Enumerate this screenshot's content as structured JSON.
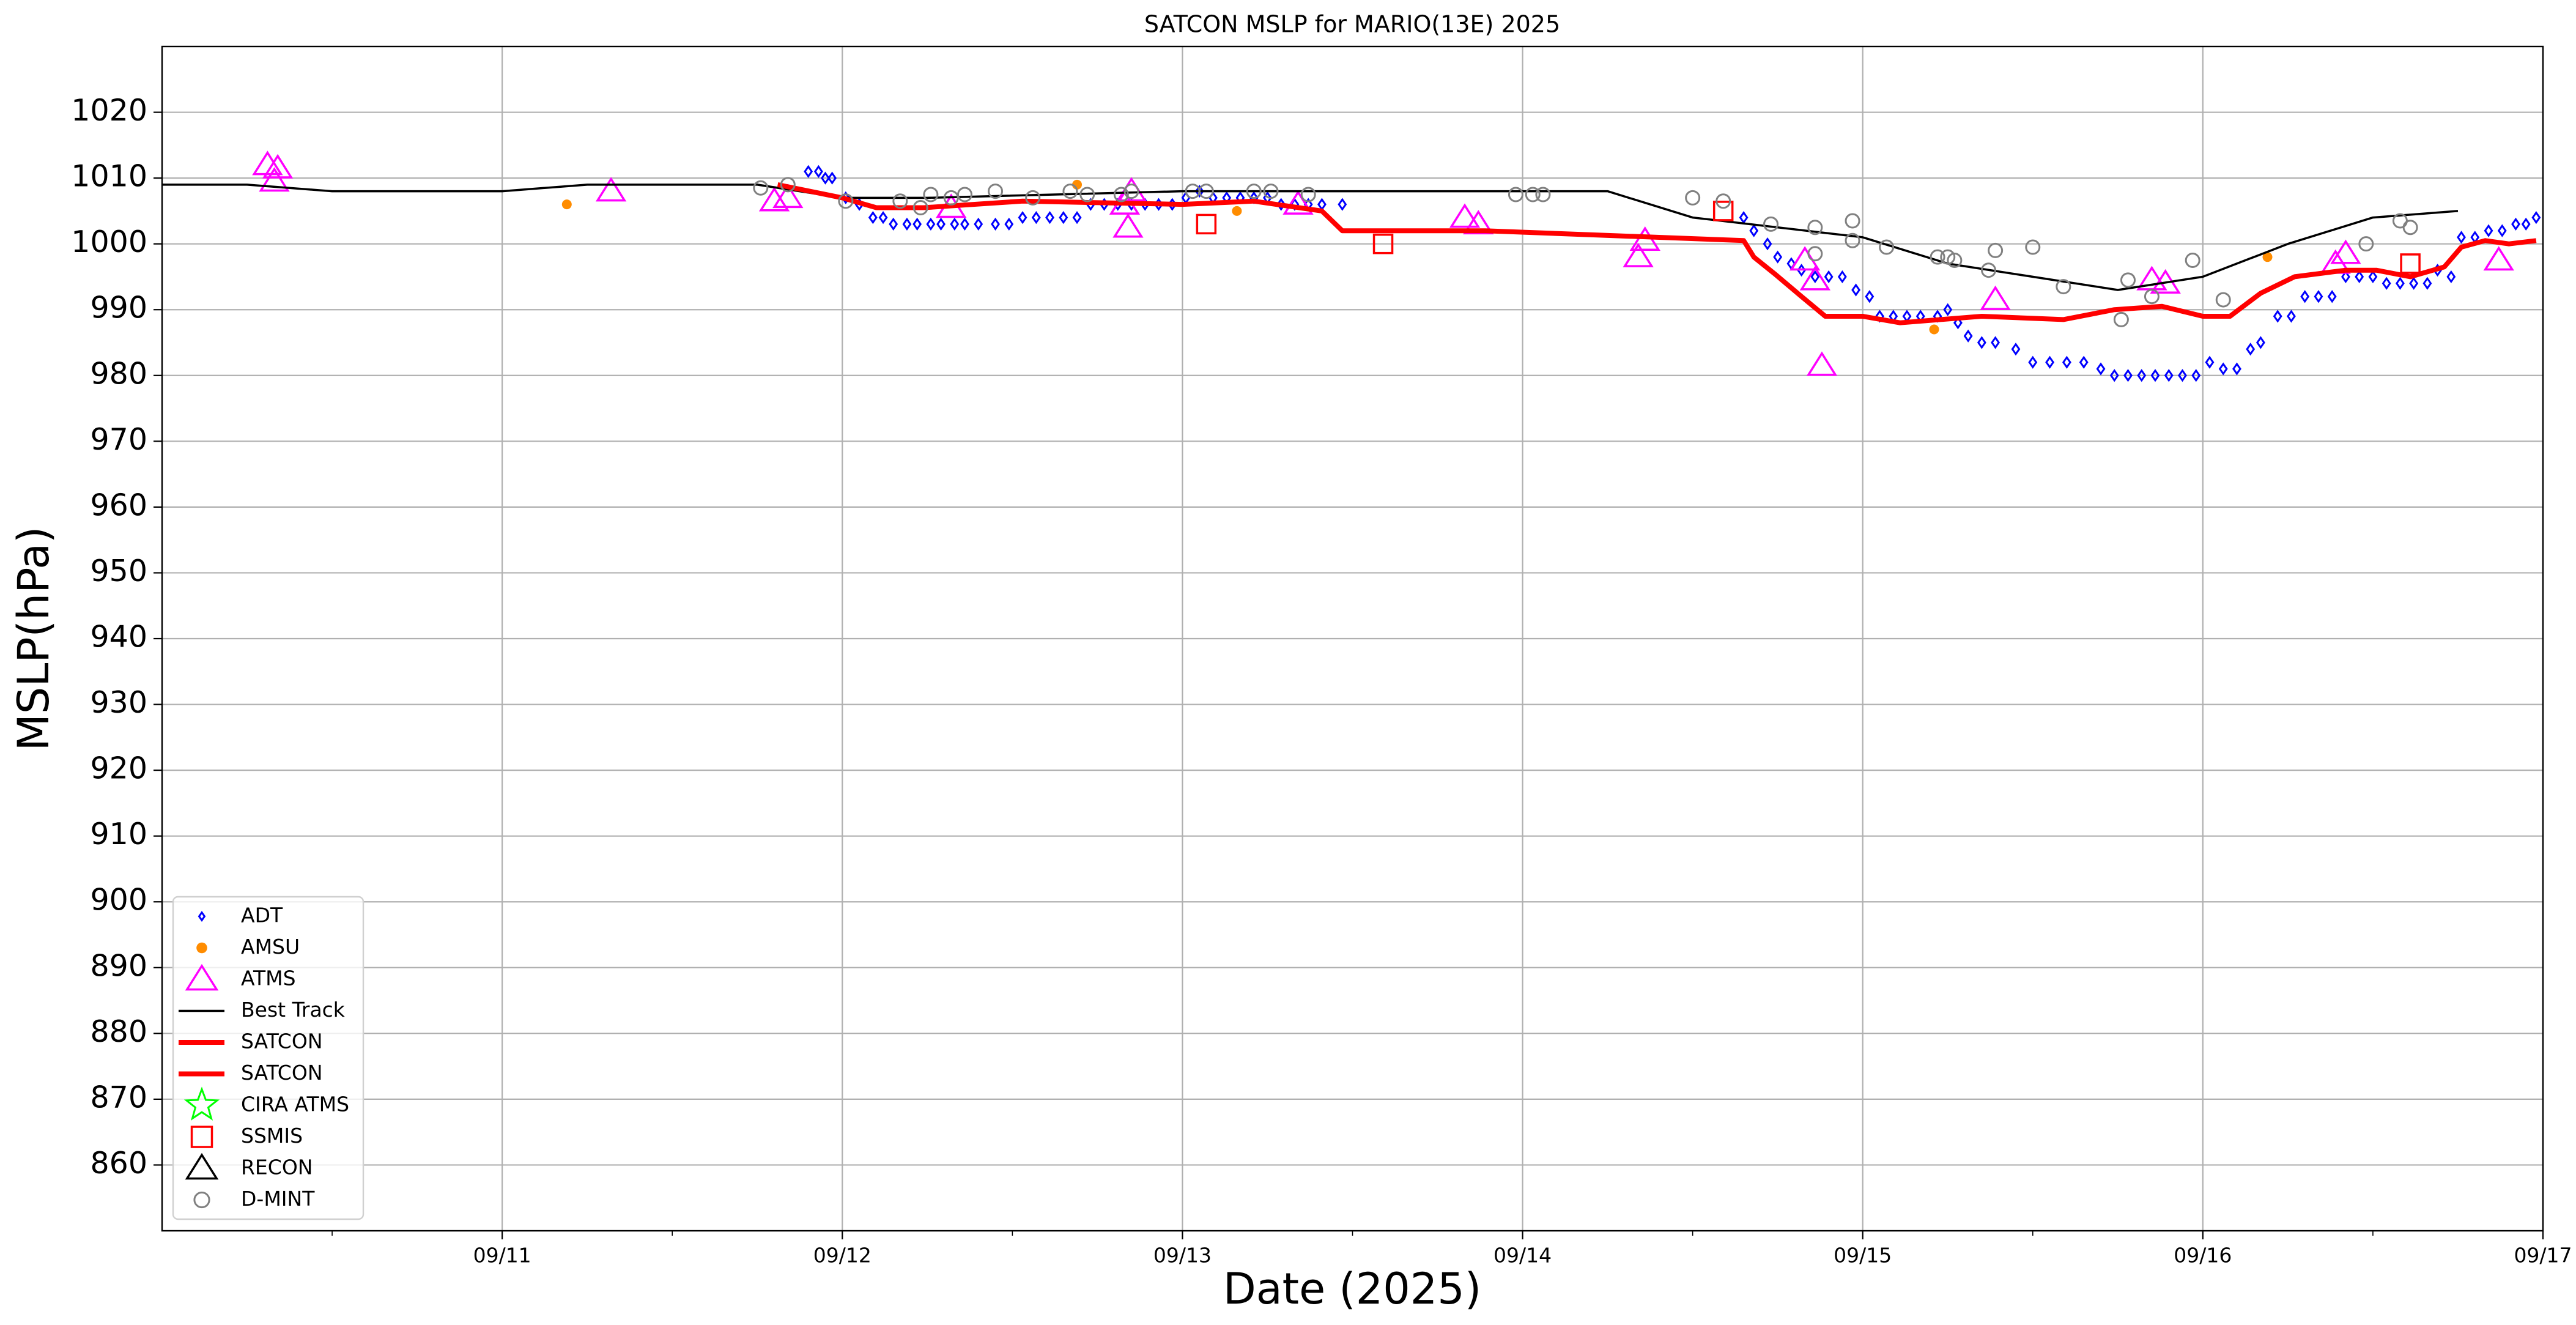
{
  "chart_data": {
    "type": "line",
    "title": "SATCON MSLP for MARIO(13E) 2025",
    "xlabel": "Date (2025)",
    "ylabel": "MSLP(hPa)",
    "xlim": [
      0,
      7
    ],
    "xticks": [
      {
        "value": 1,
        "label": "09/11"
      },
      {
        "value": 2,
        "label": "09/12"
      },
      {
        "value": 3,
        "label": "09/13"
      },
      {
        "value": 4,
        "label": "09/14"
      },
      {
        "value": 5,
        "label": "09/15"
      },
      {
        "value": 6,
        "label": "09/16"
      },
      {
        "value": 7,
        "label": "09/17"
      }
    ],
    "xminorticks": [
      0.5,
      1.5,
      2.5,
      3.5,
      4.5,
      5.5,
      6.5
    ],
    "ylim": [
      850,
      1030
    ],
    "yticks": [
      860,
      870,
      880,
      890,
      900,
      910,
      920,
      930,
      940,
      950,
      960,
      970,
      980,
      990,
      1000,
      1010,
      1020
    ],
    "grid": true,
    "legend": "lower left",
    "series": [
      {
        "name": "ADT",
        "color": "#0000ff",
        "style": "diamond",
        "x": [
          1.9,
          1.93,
          1.95,
          1.97,
          2.01,
          2.05,
          2.09,
          2.12,
          2.15,
          2.19,
          2.22,
          2.26,
          2.29,
          2.33,
          2.36,
          2.4,
          2.45,
          2.49,
          2.53,
          2.57,
          2.61,
          2.65,
          2.69,
          2.73,
          2.77,
          2.81,
          2.85,
          2.89,
          2.93,
          2.97,
          3.01,
          3.05,
          3.09,
          3.13,
          3.17,
          3.21,
          3.25,
          3.29,
          3.33,
          3.37,
          3.41,
          3.47,
          4.65,
          4.68,
          4.72,
          4.75,
          4.79,
          4.82,
          4.86,
          4.9,
          4.94,
          4.98,
          5.02,
          5.05,
          5.09,
          5.13,
          5.17,
          5.22,
          5.25,
          5.28,
          5.31,
          5.35,
          5.39,
          5.45,
          5.5,
          5.55,
          5.6,
          5.65,
          5.7,
          5.74,
          5.78,
          5.82,
          5.86,
          5.9,
          5.94,
          5.98,
          6.02,
          6.06,
          6.1,
          6.14,
          6.17,
          6.22,
          6.26,
          6.3,
          6.34,
          6.38,
          6.42,
          6.46,
          6.5,
          6.54,
          6.58,
          6.62,
          6.66,
          6.69,
          6.73,
          6.76,
          6.8,
          6.84,
          6.88,
          6.92,
          6.95,
          6.98
        ],
        "values": [
          1011,
          1011,
          1010,
          1010,
          1007,
          1006,
          1004,
          1004,
          1003,
          1003,
          1003,
          1003,
          1003,
          1003,
          1003,
          1003,
          1003,
          1003,
          1004,
          1004,
          1004,
          1004,
          1004,
          1006,
          1006,
          1006,
          1006,
          1006,
          1006,
          1006,
          1007,
          1008,
          1007,
          1007,
          1007,
          1007,
          1007,
          1006,
          1006,
          1006,
          1006,
          1006,
          1004,
          1002,
          1000,
          998,
          997,
          996,
          995,
          995,
          995,
          993,
          992,
          989,
          989,
          989,
          989,
          989,
          990,
          988,
          986,
          985,
          985,
          984,
          982,
          982,
          982,
          982,
          981,
          980,
          980,
          980,
          980,
          980,
          980,
          980,
          982,
          981,
          981,
          984,
          985,
          989,
          989,
          992,
          992,
          992,
          995,
          995,
          995,
          994,
          994,
          994,
          994,
          996,
          995,
          1001,
          1001,
          1002,
          1002,
          1003,
          1003,
          1004
        ]
      },
      {
        "name": "AMSU",
        "color": "#ff8c00",
        "style": "dot",
        "x": [
          1.19,
          2.69,
          3.16,
          5.21,
          6.19
        ],
        "values": [
          1006,
          1009,
          1005,
          987,
          998
        ]
      },
      {
        "name": "ATMS",
        "color": "#ff00ff",
        "style": "triangle",
        "x": [
          0.31,
          0.34,
          0.33,
          1.32,
          1.8,
          1.84,
          2.32,
          2.83,
          2.84,
          2.85,
          3.34,
          3.83,
          3.87,
          4.34,
          4.36,
          4.83,
          4.86,
          4.88,
          5.39,
          5.85,
          5.89,
          6.39,
          6.42,
          6.87
        ],
        "values": [
          1012,
          1011.5,
          1009.5,
          1008,
          1006.5,
          1007,
          1005.5,
          1006,
          1002.5,
          1008,
          1006,
          1004,
          1003,
          998,
          1000.5,
          997.5,
          994.5,
          981.5,
          991.5,
          994.5,
          994,
          997,
          998.5,
          997.5
        ]
      },
      {
        "name": "Best Track",
        "color": "#000000",
        "style": "line",
        "x": [
          0,
          0.25,
          0.5,
          1.0,
          1.25,
          1.75,
          2.0,
          2.25,
          3.0,
          4.0,
          4.25,
          4.5,
          5.0,
          5.25,
          5.75,
          6.0,
          6.25,
          6.5,
          6.75
        ],
        "values": [
          1009,
          1009,
          1008,
          1008,
          1009,
          1009,
          1007,
          1007,
          1008,
          1008,
          1008,
          1004,
          1001,
          997,
          993,
          995,
          1000,
          1004,
          1005
        ]
      },
      {
        "name": "SATCON",
        "color": "#ff0000",
        "style": "thick-line",
        "x": [
          1.81,
          2.0,
          2.1,
          2.24,
          2.53,
          3.0,
          3.21,
          3.41,
          3.47,
          3.89,
          4.65,
          4.68,
          4.74,
          4.82,
          4.89,
          5.0,
          5.11,
          5.35,
          5.59,
          5.74,
          5.88,
          6.0,
          6.08,
          6.17,
          6.27,
          6.42,
          6.51,
          6.61,
          6.71,
          6.76,
          6.83,
          6.9,
          6.98
        ],
        "values": [
          1009,
          1007,
          1005.5,
          1005.5,
          1006.5,
          1006,
          1006.5,
          1005,
          1002,
          1002,
          1000.5,
          998,
          995.5,
          992,
          989,
          989,
          988,
          989,
          988.5,
          990,
          990.5,
          989,
          989,
          992.5,
          995,
          996,
          996,
          995,
          996.5,
          999.5,
          1000.5,
          1000,
          1000.5
        ]
      },
      {
        "name": "SATCON",
        "color": "#ff0000",
        "style": "thick-line",
        "x": [],
        "values": []
      },
      {
        "name": "CIRA ATMS",
        "color": "#00ff00",
        "style": "star",
        "x": [],
        "values": []
      },
      {
        "name": "SSMIS",
        "color": "#ff0000",
        "style": "square",
        "x": [
          3.07,
          3.59,
          4.59,
          6.61
        ],
        "values": [
          1003,
          1000,
          1005,
          997
        ]
      },
      {
        "name": "RECON",
        "color": "#000000",
        "style": "triangle",
        "x": [],
        "values": []
      },
      {
        "name": "D-MINT",
        "color": "#808080",
        "style": "circle",
        "x": [
          1.76,
          1.84,
          2.01,
          2.17,
          2.23,
          2.26,
          2.32,
          2.36,
          2.45,
          2.56,
          2.67,
          2.72,
          2.82,
          2.85,
          3.03,
          3.07,
          3.21,
          3.26,
          3.37,
          3.98,
          4.03,
          4.06,
          4.5,
          4.59,
          4.73,
          4.86,
          4.86,
          4.97,
          4.97,
          5.07,
          5.22,
          5.25,
          5.27,
          5.37,
          5.39,
          5.5,
          5.59,
          5.76,
          5.78,
          5.85,
          5.97,
          6.06,
          6.48,
          6.58,
          6.61
        ],
        "values": [
          1008.5,
          1009,
          1006.5,
          1006.5,
          1005.5,
          1007.5,
          1007,
          1007.5,
          1008,
          1007,
          1008,
          1007.5,
          1007.5,
          1008,
          1008,
          1008,
          1008,
          1008,
          1007.5,
          1007.5,
          1007.5,
          1007.5,
          1007,
          1006.5,
          1003,
          1002.5,
          998.5,
          1003.5,
          1000.5,
          999.5,
          998,
          998,
          997.5,
          996,
          999,
          999.5,
          993.5,
          988.5,
          994.5,
          992,
          997.5,
          991.5,
          1000,
          1003.5,
          1002.5
        ]
      }
    ]
  }
}
